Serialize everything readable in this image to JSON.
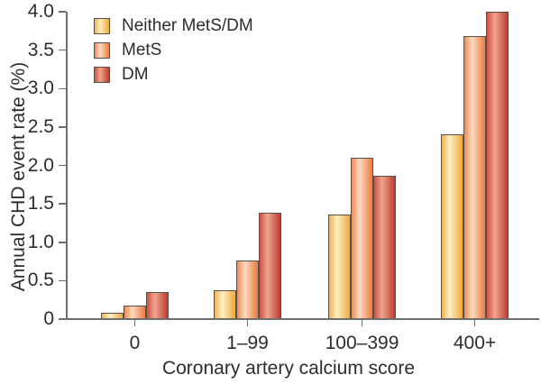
{
  "chart_data": {
    "type": "bar",
    "title": "",
    "xlabel": "Coronary artery calcium score",
    "ylabel": "Annual CHD event rate (%)",
    "categories": [
      "0",
      "1–99",
      "100–399",
      "400+"
    ],
    "series": [
      {
        "name": "Neither MetS/DM",
        "values": [
          0.08,
          0.38,
          1.36,
          2.41
        ],
        "colors": {
          "edge_left": "#F0B052",
          "center": "#FEF0C3",
          "edge_right": "#EFA93A"
        }
      },
      {
        "name": "MetS",
        "values": [
          0.18,
          0.76,
          2.1,
          3.68
        ],
        "colors": {
          "edge_left": "#EE8B54",
          "center": "#FDDAC1",
          "edge_right": "#EB7B41"
        }
      },
      {
        "name": "DM",
        "values": [
          0.35,
          1.39,
          1.87,
          4.0
        ],
        "colors": {
          "edge_left": "#CE4F43",
          "center": "#F0A58F",
          "edge_right": "#BE3B31"
        }
      }
    ],
    "ylim": [
      0,
      4.0
    ],
    "ytick_values": [
      0,
      0.5,
      1.0,
      1.5,
      2.0,
      2.5,
      3.0,
      3.5,
      4.0
    ],
    "ytick_labels": [
      "0",
      "0.5",
      "1.0",
      "1.5",
      "2.0",
      "2.5",
      "3.0",
      "3.5",
      "4.0"
    ],
    "grid": false,
    "legend_position": "top-left",
    "bar_outline_color": "#55514c",
    "axis_color": "#6e6f71",
    "text_color": "#2e2d2c"
  }
}
